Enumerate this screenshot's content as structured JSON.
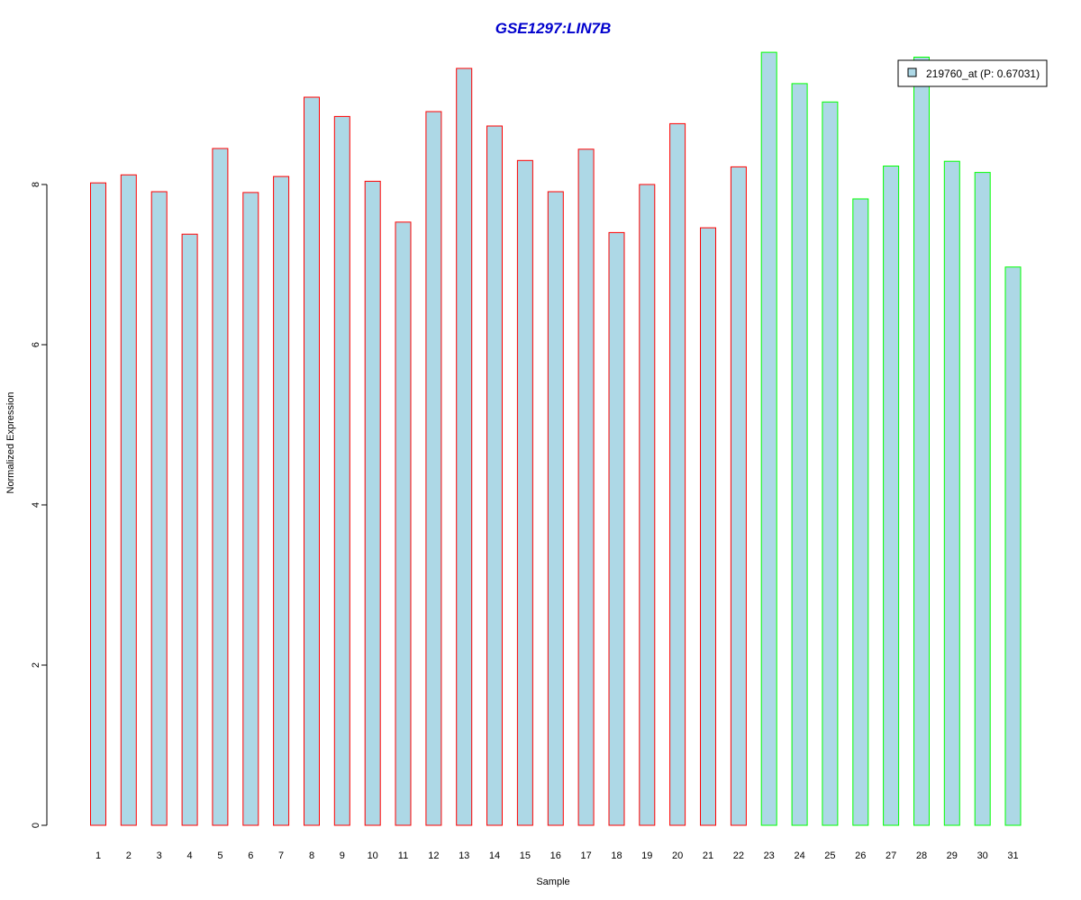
{
  "chart_data": {
    "type": "bar",
    "title": "GSE1297:LIN7B",
    "xlabel": "Sample",
    "ylabel": "Normalized Expression",
    "categories": [
      "1",
      "2",
      "3",
      "4",
      "5",
      "6",
      "7",
      "8",
      "9",
      "10",
      "11",
      "12",
      "13",
      "14",
      "15",
      "16",
      "17",
      "18",
      "19",
      "20",
      "21",
      "22",
      "23",
      "24",
      "25",
      "26",
      "27",
      "28",
      "29",
      "30",
      "31"
    ],
    "series": [
      {
        "name": "219760_at (P: 0.67031)",
        "values": [
          8.02,
          8.12,
          7.91,
          7.38,
          8.45,
          7.9,
          8.1,
          9.09,
          8.85,
          8.04,
          7.53,
          8.91,
          9.45,
          8.73,
          8.3,
          7.91,
          8.44,
          7.4,
          8.0,
          8.76,
          7.46,
          8.22,
          9.65,
          9.26,
          9.03,
          7.82,
          8.23,
          9.59,
          8.29,
          8.15,
          6.97
        ]
      }
    ],
    "groups": [
      {
        "samples": "1-22",
        "border_color": "#ff0000"
      },
      {
        "samples": "23-31",
        "border_color": "#00ff00"
      }
    ],
    "yticks": [
      0,
      2,
      4,
      6,
      8
    ],
    "ylim": [
      0,
      9.65
    ],
    "legend_position": "top-right",
    "grid": false,
    "colors": {
      "bar_fill": "#add8e6",
      "title": "#0000cd",
      "group1_border": "#ff0000",
      "group2_border": "#00ff00"
    }
  }
}
